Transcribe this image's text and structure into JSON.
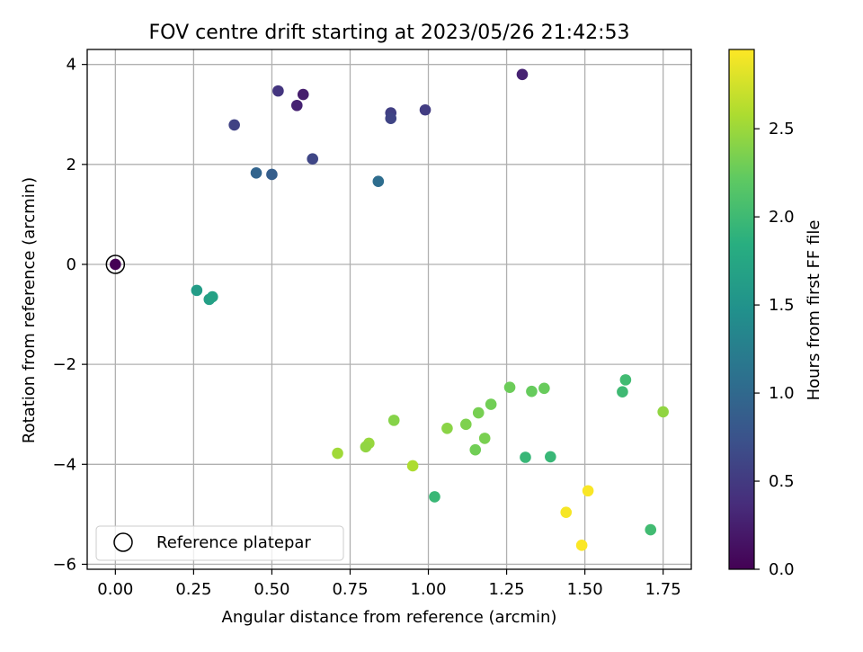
{
  "chart_data": {
    "type": "scatter",
    "title": "FOV centre drift starting at 2023/05/26 21:42:53",
    "xlabel": "Angular distance from reference (arcmin)",
    "ylabel": "Rotation from reference (arcmin)",
    "xlim": [
      -0.09,
      1.84
    ],
    "ylim": [
      -6.1,
      4.3
    ],
    "grid": true,
    "xticks": [
      0.0,
      0.25,
      0.5,
      0.75,
      1.0,
      1.25,
      1.5,
      1.75
    ],
    "xtick_labels": [
      "0.00",
      "0.25",
      "0.50",
      "0.75",
      "1.00",
      "1.25",
      "1.50",
      "1.75"
    ],
    "yticks": [
      -6,
      -4,
      -2,
      0,
      2,
      4
    ],
    "ytick_labels": [
      "−6",
      "−4",
      "−2",
      "0",
      "2",
      "4"
    ],
    "colorbar": {
      "label": "Hours from first FF file",
      "colormap": "viridis",
      "range": [
        0.0,
        2.95
      ],
      "ticks": [
        0.0,
        0.5,
        1.0,
        1.5,
        2.0,
        2.5
      ],
      "tick_labels": [
        "0.0",
        "0.5",
        "1.0",
        "1.5",
        "2.0",
        "2.5"
      ]
    },
    "legend": {
      "position": "lower-left",
      "entries": [
        {
          "label": "Reference platepar",
          "marker": "open-circle"
        }
      ]
    },
    "reference_point": {
      "x": 0.0,
      "y": 0.0,
      "hours": 0.0
    },
    "points": [
      {
        "x": 0.0,
        "y": 0.0,
        "hours": 0.0
      },
      {
        "x": 1.3,
        "y": 3.8,
        "hours": 0.28
      },
      {
        "x": 0.6,
        "y": 3.4,
        "hours": 0.24
      },
      {
        "x": 0.58,
        "y": 3.18,
        "hours": 0.28
      },
      {
        "x": 0.52,
        "y": 3.47,
        "hours": 0.45
      },
      {
        "x": 0.38,
        "y": 2.79,
        "hours": 0.58
      },
      {
        "x": 0.88,
        "y": 3.03,
        "hours": 0.55
      },
      {
        "x": 0.88,
        "y": 2.92,
        "hours": 0.6
      },
      {
        "x": 0.99,
        "y": 3.09,
        "hours": 0.52
      },
      {
        "x": 0.63,
        "y": 2.11,
        "hours": 0.62
      },
      {
        "x": 0.45,
        "y": 1.83,
        "hours": 0.95
      },
      {
        "x": 0.5,
        "y": 1.8,
        "hours": 0.88
      },
      {
        "x": 0.84,
        "y": 1.66,
        "hours": 1.05
      },
      {
        "x": 0.26,
        "y": -0.52,
        "hours": 1.62
      },
      {
        "x": 0.3,
        "y": -0.7,
        "hours": 1.65
      },
      {
        "x": 0.31,
        "y": -0.65,
        "hours": 1.68
      },
      {
        "x": 1.63,
        "y": -2.31,
        "hours": 2.02
      },
      {
        "x": 1.62,
        "y": -2.55,
        "hours": 2.0
      },
      {
        "x": 1.02,
        "y": -4.65,
        "hours": 1.97
      },
      {
        "x": 1.31,
        "y": -3.86,
        "hours": 1.95
      },
      {
        "x": 1.39,
        "y": -3.85,
        "hours": 1.96
      },
      {
        "x": 1.71,
        "y": -5.31,
        "hours": 2.02
      },
      {
        "x": 1.26,
        "y": -2.46,
        "hours": 2.28
      },
      {
        "x": 1.33,
        "y": -2.54,
        "hours": 2.25
      },
      {
        "x": 1.37,
        "y": -2.48,
        "hours": 2.26
      },
      {
        "x": 1.2,
        "y": -2.8,
        "hours": 2.3
      },
      {
        "x": 1.16,
        "y": -2.97,
        "hours": 2.33
      },
      {
        "x": 1.12,
        "y": -3.2,
        "hours": 2.36
      },
      {
        "x": 1.18,
        "y": -3.48,
        "hours": 2.34
      },
      {
        "x": 1.15,
        "y": -3.71,
        "hours": 2.3
      },
      {
        "x": 1.06,
        "y": -3.28,
        "hours": 2.42
      },
      {
        "x": 0.89,
        "y": -3.12,
        "hours": 2.4
      },
      {
        "x": 0.81,
        "y": -3.58,
        "hours": 2.48
      },
      {
        "x": 0.8,
        "y": -3.65,
        "hours": 2.45
      },
      {
        "x": 0.71,
        "y": -3.78,
        "hours": 2.52
      },
      {
        "x": 0.95,
        "y": -4.03,
        "hours": 2.58
      },
      {
        "x": 1.75,
        "y": -2.95,
        "hours": 2.45
      },
      {
        "x": 1.44,
        "y": -4.96,
        "hours": 2.92
      },
      {
        "x": 1.51,
        "y": -4.53,
        "hours": 2.93
      },
      {
        "x": 1.49,
        "y": -5.62,
        "hours": 2.94
      }
    ]
  }
}
